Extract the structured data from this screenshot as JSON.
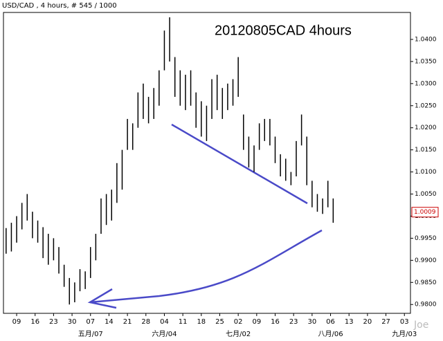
{
  "chart_data": {
    "type": "hlbar",
    "header": "USD/CAD , 4 hours, # 545 / 1000",
    "title": "20120805CAD 4hours",
    "watermark": "Joe",
    "color": "#000000",
    "x": [
      -4,
      -2,
      0,
      2,
      4,
      6,
      8,
      10,
      12,
      14,
      16,
      18,
      20,
      22,
      24,
      26,
      28,
      30,
      32,
      34,
      36,
      38,
      40,
      42,
      44,
      46,
      48,
      50,
      52,
      54,
      56,
      58,
      60,
      62,
      64,
      66,
      68,
      70,
      72,
      74,
      76,
      78,
      80,
      82,
      84,
      86,
      88,
      90,
      92,
      94,
      96,
      98,
      100,
      102,
      104,
      106,
      108,
      110,
      112,
      114,
      116,
      118,
      120
    ],
    "high": [
      0.9973,
      0.9985,
      1.0,
      1.003,
      1.005,
      1.001,
      0.999,
      0.9975,
      0.996,
      0.995,
      0.993,
      0.989,
      0.986,
      0.985,
      0.988,
      0.9875,
      0.993,
      0.996,
      1.004,
      1.005,
      1.006,
      1.012,
      1.015,
      1.022,
      1.021,
      1.028,
      1.03,
      1.027,
      1.029,
      1.033,
      1.042,
      1.045,
      1.036,
      1.033,
      1.032,
      1.033,
      1.028,
      1.026,
      1.025,
      1.031,
      1.032,
      1.029,
      1.03,
      1.031,
      1.036,
      1.023,
      1.018,
      1.016,
      1.021,
      1.022,
      1.022,
      1.018,
      1.014,
      1.013,
      1.01,
      1.017,
      1.023,
      1.018,
      1.008,
      1.005,
      1.004,
      1.008,
      1.004
    ],
    "low": [
      0.9915,
      0.992,
      0.994,
      0.997,
      0.999,
      0.995,
      0.994,
      0.9905,
      0.989,
      0.99,
      0.987,
      0.984,
      0.98,
      0.9805,
      0.983,
      0.9835,
      0.986,
      0.99,
      0.996,
      0.998,
      0.999,
      1.003,
      1.006,
      1.015,
      1.015,
      1.02,
      1.022,
      1.021,
      1.022,
      1.025,
      1.033,
      1.035,
      1.027,
      1.025,
      1.024,
      1.025,
      1.02,
      1.018,
      1.017,
      1.022,
      1.024,
      1.022,
      1.024,
      1.025,
      1.027,
      1.015,
      1.011,
      1.01,
      1.015,
      1.017,
      1.016,
      1.012,
      1.009,
      1.008,
      1.007,
      1.009,
      1.016,
      1.007,
      1.002,
      1.001,
      1.0005,
      1.002,
      0.9985
    ],
    "last_price": {
      "value": 1.0009,
      "label": "1.0009"
    },
    "xlim": [
      -5,
      149.3
    ],
    "ylim": [
      0.978,
      1.0461
    ],
    "yticks": [
      {
        "value": 0.98,
        "label": "0.9800"
      },
      {
        "value": 0.985,
        "label": "0.9850"
      },
      {
        "value": 0.99,
        "label": "0.9900"
      },
      {
        "value": 0.995,
        "label": "0.9950"
      },
      {
        "value": 1.0,
        "label": "1.0000"
      },
      {
        "value": 1.005,
        "label": "1.0050"
      },
      {
        "value": 1.01,
        "label": "1.0100"
      },
      {
        "value": 1.015,
        "label": "1.0150"
      },
      {
        "value": 1.02,
        "label": "1.0200"
      },
      {
        "value": 1.025,
        "label": "1.0250"
      },
      {
        "value": 1.03,
        "label": "1.0300"
      },
      {
        "value": 1.035,
        "label": "1.0350"
      },
      {
        "value": 1.04,
        "label": "1.0400"
      }
    ],
    "xticks": [
      {
        "value": 0,
        "label": "09"
      },
      {
        "value": 7,
        "label": "16"
      },
      {
        "value": 14,
        "label": "23"
      },
      {
        "value": 21,
        "label": "30"
      },
      {
        "value": 28,
        "label": "07"
      },
      {
        "value": 35,
        "label": "14"
      },
      {
        "value": 42,
        "label": "21"
      },
      {
        "value": 49,
        "label": "28"
      },
      {
        "value": 56,
        "label": "04"
      },
      {
        "value": 63,
        "label": "11"
      },
      {
        "value": 70,
        "label": "18"
      },
      {
        "value": 77,
        "label": "25"
      },
      {
        "value": 84,
        "label": "02"
      },
      {
        "value": 91,
        "label": "09"
      },
      {
        "value": 98,
        "label": "16"
      },
      {
        "value": 105,
        "label": "23"
      },
      {
        "value": 112,
        "label": "30"
      },
      {
        "value": 119,
        "label": "06"
      },
      {
        "value": 126,
        "label": "13"
      },
      {
        "value": 133,
        "label": "20"
      },
      {
        "value": 140,
        "label": "27"
      },
      {
        "value": 147,
        "label": "03"
      }
    ],
    "month_ticks": [
      {
        "value": 28,
        "label": "五月/07"
      },
      {
        "value": 56,
        "label": "六月/04"
      },
      {
        "value": 84,
        "label": "七月/02"
      },
      {
        "value": 119,
        "label": "八月/06"
      },
      {
        "value": 147,
        "label": "九月/03"
      }
    ]
  }
}
